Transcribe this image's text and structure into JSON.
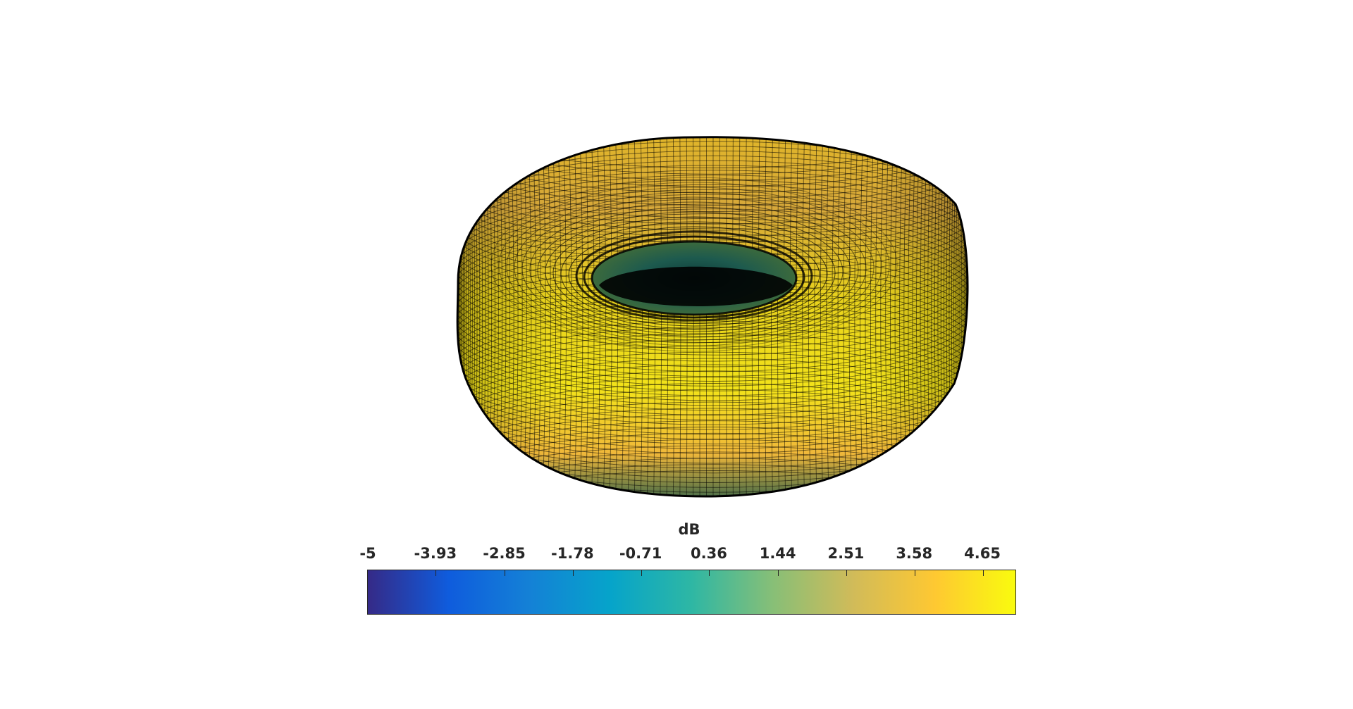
{
  "chart_data": {
    "type": "surface",
    "description_type": "3d-radiation-pattern",
    "shape": "toroidal",
    "colormap": "parula",
    "colorbar": {
      "label": "dB",
      "orientation": "horizontal",
      "placement": "below",
      "range": [
        -5,
        5.18
      ],
      "ticks": [
        -5,
        -3.93,
        -2.85,
        -1.78,
        -0.71,
        0.36,
        1.44,
        2.51,
        3.58,
        4.65
      ],
      "tick_labels": [
        "-5",
        "-3.93",
        "-2.85",
        "-1.78",
        "-0.71",
        "0.36",
        "1.44",
        "2.51",
        "3.58",
        "4.65"
      ]
    },
    "pattern": {
      "max_gain_dB": 5.18,
      "min_gain_dB": -5,
      "null_axis": "vertical",
      "mesh_lines": true
    },
    "colors": {
      "mesh_edge": "#000000",
      "parula_stops": [
        "#352a87",
        "#0f5cdd",
        "#1481d6",
        "#06a4ca",
        "#2eb7a4",
        "#87bf77",
        "#d1bb59",
        "#fec832",
        "#f9fb0e"
      ]
    },
    "grid": false,
    "axes_visible": false
  }
}
